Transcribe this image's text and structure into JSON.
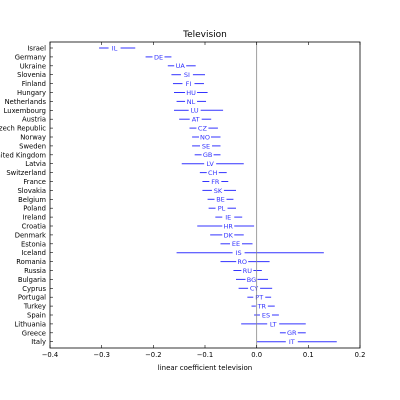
{
  "chart_data": {
    "type": "scatter",
    "title": "Television",
    "xlabel": "linear coefficient television",
    "ylabel": "",
    "xlim": [
      -0.4,
      0.2
    ],
    "xticks": [
      "−0.4",
      "−0.3",
      "−0.2",
      "−0.1",
      "0.0",
      "0.1",
      "0.2"
    ],
    "xtick_values": [
      -0.4,
      -0.3,
      -0.2,
      -0.1,
      0.0,
      0.1,
      0.2
    ],
    "reference_line_x": 0.0,
    "grid": false,
    "color": "#3333ff",
    "rows": [
      {
        "country": "Israel",
        "code": "IL",
        "est": -0.275,
        "lo": -0.305,
        "hi": -0.235
      },
      {
        "country": "Germany",
        "code": "DE",
        "est": -0.19,
        "lo": -0.215,
        "hi": -0.165
      },
      {
        "country": "Ukraine",
        "code": "UA",
        "est": -0.148,
        "lo": -0.172,
        "hi": -0.118
      },
      {
        "country": "Slovenia",
        "code": "SI",
        "est": -0.135,
        "lo": -0.165,
        "hi": -0.1
      },
      {
        "country": "Finland",
        "code": "FI",
        "est": -0.132,
        "lo": -0.162,
        "hi": -0.102
      },
      {
        "country": "Hungary",
        "code": "HU",
        "est": -0.127,
        "lo": -0.16,
        "hi": -0.095
      },
      {
        "country": "Netherlands",
        "code": "NL",
        "est": -0.127,
        "lo": -0.155,
        "hi": -0.098
      },
      {
        "country": "Luxembourg",
        "code": "LU",
        "est": -0.12,
        "lo": -0.16,
        "hi": -0.065
      },
      {
        "country": "Austria",
        "code": "AT",
        "est": -0.118,
        "lo": -0.15,
        "hi": -0.088
      },
      {
        "country": "Czech Republic",
        "code": "CZ",
        "est": -0.105,
        "lo": -0.13,
        "hi": -0.075
      },
      {
        "country": "Norway",
        "code": "NO",
        "est": -0.1,
        "lo": -0.125,
        "hi": -0.07
      },
      {
        "country": "Sweden",
        "code": "SE",
        "est": -0.098,
        "lo": -0.125,
        "hi": -0.07
      },
      {
        "country": "United Kingdom",
        "code": "GB",
        "est": -0.095,
        "lo": -0.12,
        "hi": -0.07
      },
      {
        "country": "Latvia",
        "code": "LV",
        "est": -0.09,
        "lo": -0.145,
        "hi": -0.025
      },
      {
        "country": "Switzerland",
        "code": "CH",
        "est": -0.085,
        "lo": -0.11,
        "hi": -0.058
      },
      {
        "country": "France",
        "code": "FR",
        "est": -0.08,
        "lo": -0.105,
        "hi": -0.055
      },
      {
        "country": "Slovakia",
        "code": "SK",
        "est": -0.075,
        "lo": -0.105,
        "hi": -0.04
      },
      {
        "country": "Belgium",
        "code": "BE",
        "est": -0.07,
        "lo": -0.095,
        "hi": -0.045
      },
      {
        "country": "Poland",
        "code": "PL",
        "est": -0.068,
        "lo": -0.093,
        "hi": -0.04
      },
      {
        "country": "Ireland",
        "code": "IE",
        "est": -0.055,
        "lo": -0.08,
        "hi": -0.028
      },
      {
        "country": "Croatia",
        "code": "HR",
        "est": -0.055,
        "lo": -0.115,
        "hi": -0.005
      },
      {
        "country": "Denmark",
        "code": "DK",
        "est": -0.055,
        "lo": -0.09,
        "hi": -0.025
      },
      {
        "country": "Estonia",
        "code": "EE",
        "est": -0.04,
        "lo": -0.07,
        "hi": -0.008
      },
      {
        "country": "Iceland",
        "code": "IS",
        "est": -0.035,
        "lo": -0.155,
        "hi": 0.13
      },
      {
        "country": "Romania",
        "code": "RO",
        "est": -0.028,
        "lo": -0.07,
        "hi": 0.025
      },
      {
        "country": "Russia",
        "code": "RU",
        "est": -0.018,
        "lo": -0.045,
        "hi": 0.01
      },
      {
        "country": "Bulgaria",
        "code": "BG",
        "est": -0.01,
        "lo": -0.04,
        "hi": 0.022
      },
      {
        "country": "Cyprus",
        "code": "CY",
        "est": -0.005,
        "lo": -0.035,
        "hi": 0.03
      },
      {
        "country": "Portugal",
        "code": "PT",
        "est": 0.005,
        "lo": -0.018,
        "hi": 0.028
      },
      {
        "country": "Turkey",
        "code": "TR",
        "est": 0.01,
        "lo": -0.01,
        "hi": 0.035
      },
      {
        "country": "Spain",
        "code": "ES",
        "est": 0.018,
        "lo": -0.005,
        "hi": 0.043
      },
      {
        "country": "Lithuania",
        "code": "LT",
        "est": 0.032,
        "lo": -0.03,
        "hi": 0.095
      },
      {
        "country": "Greece",
        "code": "GR",
        "est": 0.068,
        "lo": 0.045,
        "hi": 0.095
      },
      {
        "country": "Italy",
        "code": "IT",
        "est": 0.068,
        "lo": 0.0,
        "hi": 0.155
      }
    ]
  }
}
